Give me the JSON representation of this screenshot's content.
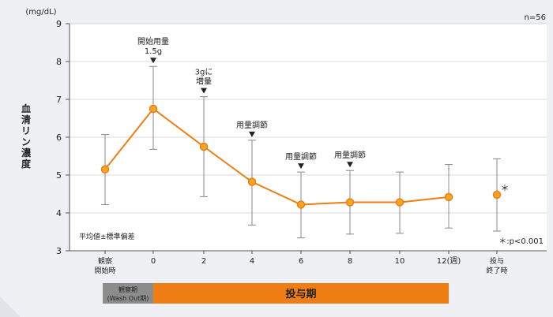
{
  "chart_data": {
    "type": "line",
    "ylabel": "血清リン濃度",
    "yunit": "(mg/dL)",
    "ylim": [
      3,
      9
    ],
    "yticks": [
      "3",
      "4",
      "5",
      "6",
      "7",
      "8",
      "9"
    ],
    "n_label": "n=56",
    "error_label": "平均値±標準偏差",
    "pvalue_label": "＊:p<0.001",
    "xlabels": [
      {
        "key": "obs",
        "lines": [
          "観察",
          "開始時"
        ]
      },
      {
        "key": "w0",
        "lines": [
          "0"
        ]
      },
      {
        "key": "w2",
        "lines": [
          "2"
        ]
      },
      {
        "key": "w4",
        "lines": [
          "4"
        ]
      },
      {
        "key": "w6",
        "lines": [
          "6"
        ]
      },
      {
        "key": "w8",
        "lines": [
          "8"
        ]
      },
      {
        "key": "w10",
        "lines": [
          "10"
        ]
      },
      {
        "key": "w12",
        "lines": [
          "12(週)"
        ]
      },
      {
        "key": "end",
        "lines": [
          "投与",
          "終了時"
        ]
      }
    ],
    "series": [
      {
        "color": "#ee7d14",
        "values": [
          5.15,
          6.75,
          5.75,
          4.82,
          4.22,
          4.28,
          4.28,
          4.42,
          4.48
        ],
        "error_low": [
          4.22,
          5.68,
          4.43,
          3.68,
          3.34,
          3.44,
          3.46,
          3.6,
          3.52
        ],
        "error_high": [
          6.07,
          7.87,
          7.07,
          5.92,
          5.08,
          5.12,
          5.08,
          5.28,
          5.43
        ]
      }
    ],
    "annotations": [
      {
        "index": 1,
        "lines": [
          "開始用量",
          "1.5g"
        ]
      },
      {
        "index": 2,
        "lines": [
          "3gに",
          "増量"
        ]
      },
      {
        "index": 3,
        "lines": [
          "用量調節"
        ]
      },
      {
        "index": 4,
        "lines": [
          "用量調節"
        ]
      },
      {
        "index": 5,
        "lines": [
          "用量調節"
        ]
      }
    ],
    "significance": {
      "index": 8,
      "mark": "＊"
    }
  },
  "period_bar": {
    "observation_label_1": "観察期",
    "observation_label_2": "(Wash Out期)",
    "dosing_label": "投与期",
    "observation_color": "#8c8c8c",
    "dosing_color": "#ee7d14"
  },
  "colors": {
    "background": "#eef0f4",
    "plot_bg": "#ffffff",
    "grid": "#cccccc",
    "line": "#ee7d14",
    "error_bar": "#888888"
  }
}
